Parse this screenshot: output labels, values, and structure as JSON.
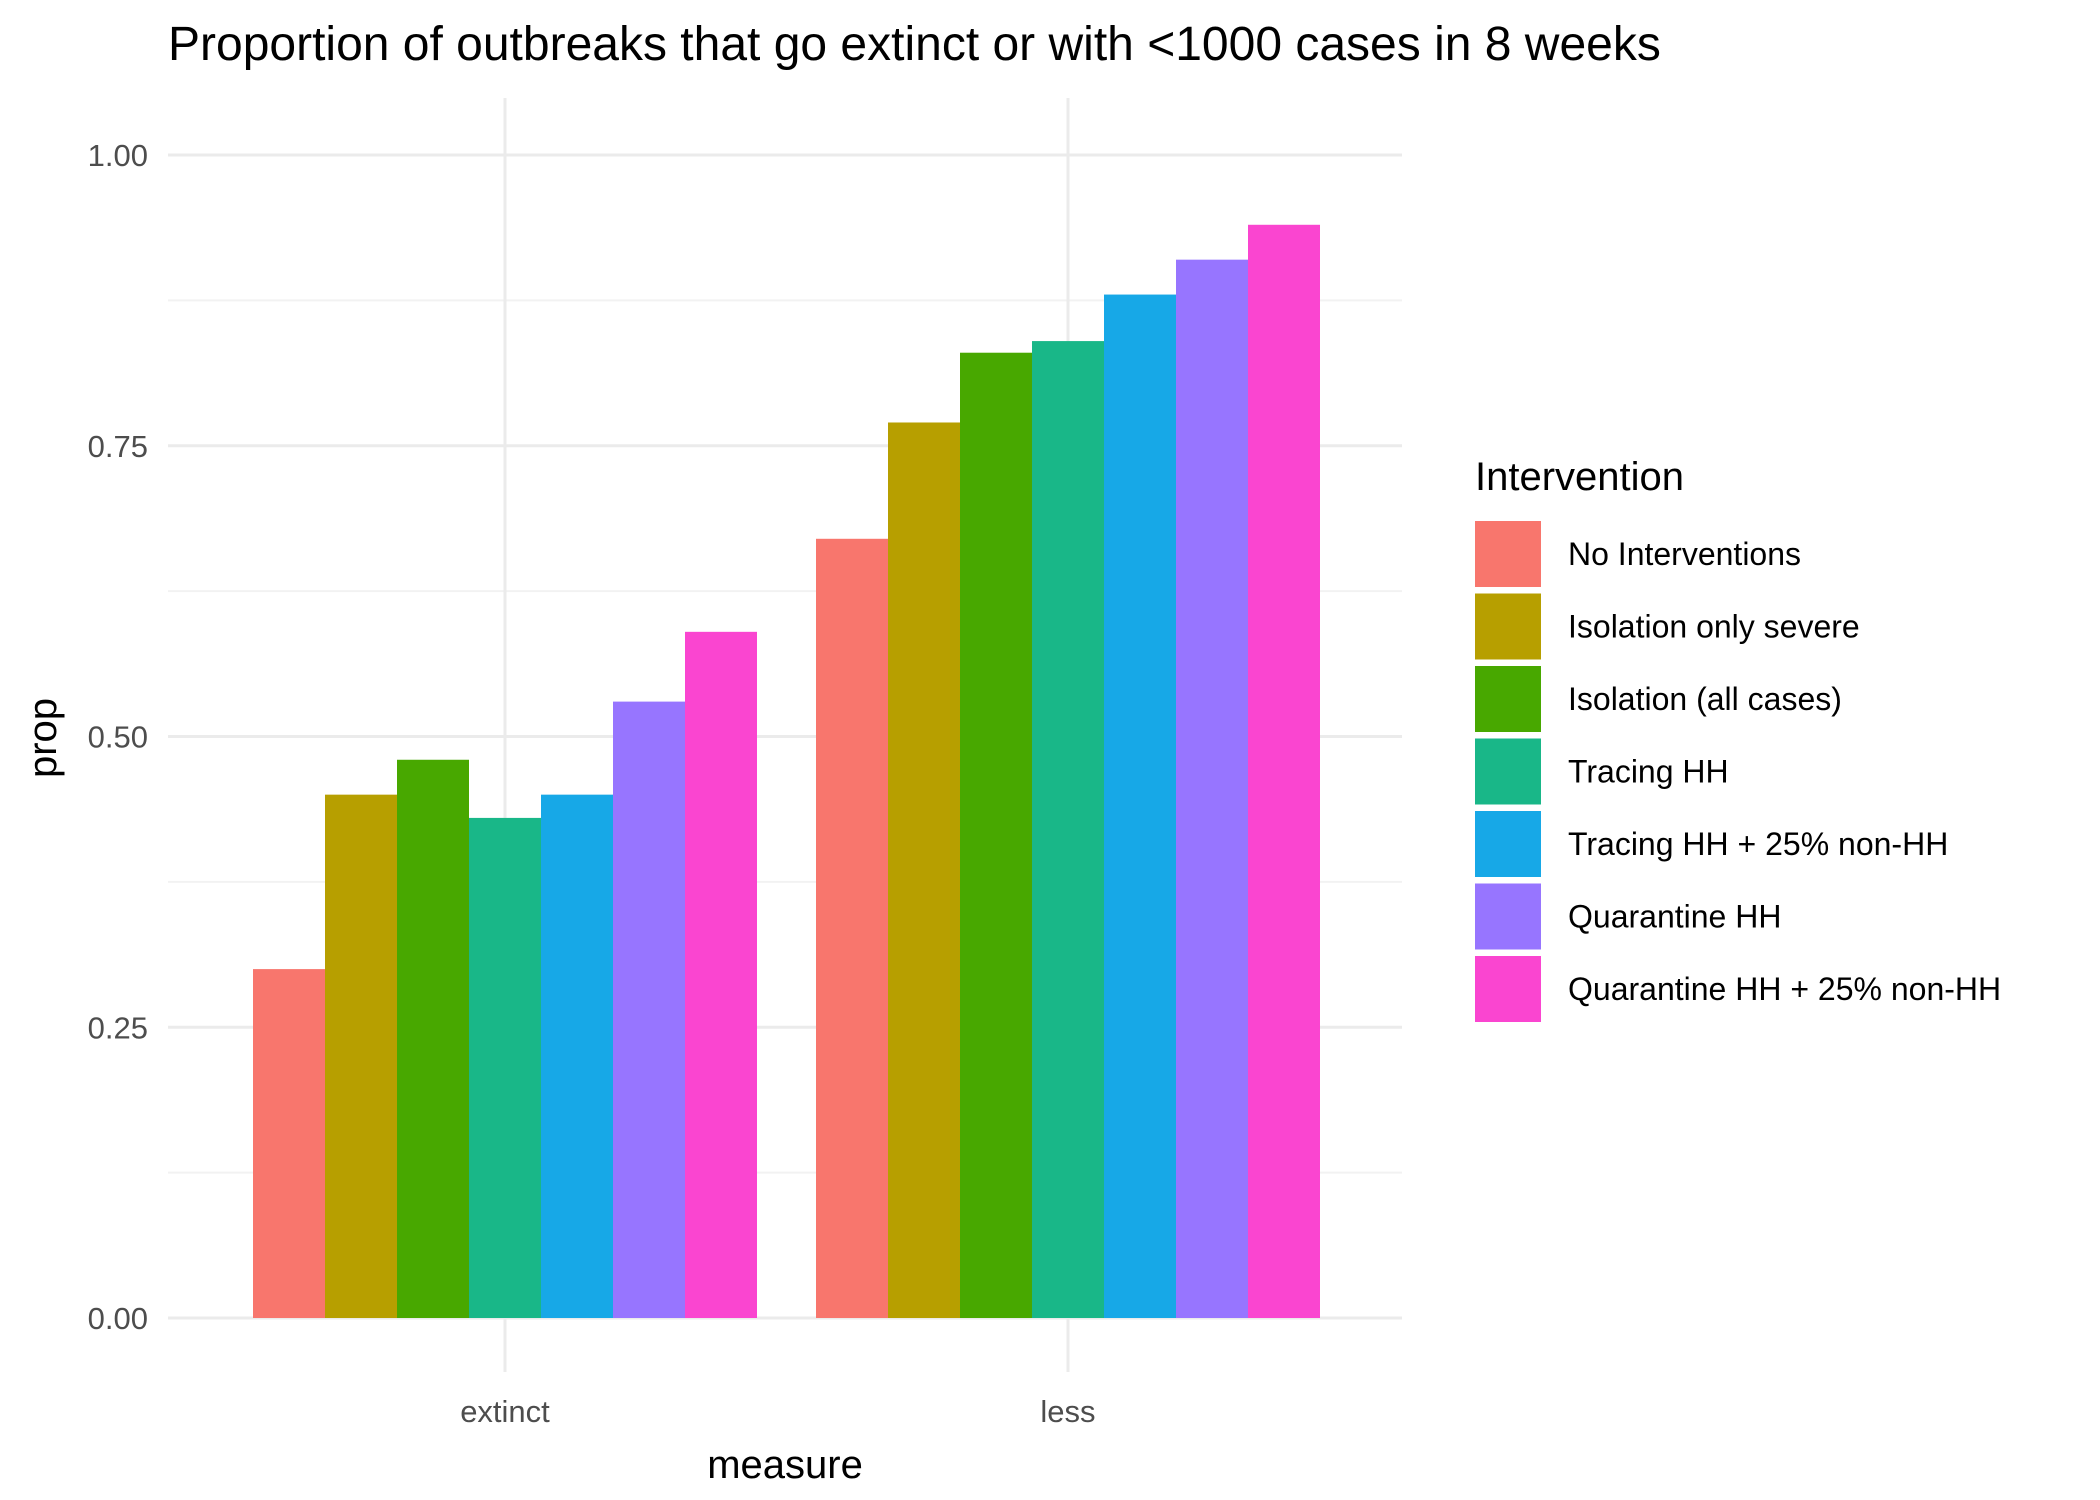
{
  "chart_data": {
    "type": "bar",
    "title": "Proportion of outbreaks that go extinct or with <1000 cases in 8 weeks",
    "xlabel": "measure",
    "ylabel": "prop",
    "categories": [
      "extinct",
      "less"
    ],
    "ylim": [
      0,
      1
    ],
    "yticks": [
      0.0,
      0.25,
      0.5,
      0.75,
      1.0
    ],
    "ytick_labels": [
      "0.00",
      "0.25",
      "0.50",
      "0.75",
      "1.00"
    ],
    "grid": true,
    "legend_title": "Intervention",
    "legend_position": "right",
    "series": [
      {
        "name": "No Interventions",
        "color": "#F8766D",
        "values": [
          0.3,
          0.67
        ]
      },
      {
        "name": "Isolation only severe",
        "color": "#B79F00",
        "values": [
          0.45,
          0.77
        ]
      },
      {
        "name": "Isolation (all cases)",
        "color": "#48A800",
        "values": [
          0.48,
          0.83
        ]
      },
      {
        "name": "Tracing HH",
        "color": "#19B788",
        "values": [
          0.43,
          0.84
        ]
      },
      {
        "name": "Tracing HH + 25% non-HH",
        "color": "#17A8E7",
        "values": [
          0.45,
          0.88
        ]
      },
      {
        "name": "Quarantine HH",
        "color": "#9775FF",
        "values": [
          0.53,
          0.91
        ]
      },
      {
        "name": "Quarantine HH + 25% non-HH",
        "color": "#FA45D0",
        "values": [
          0.59,
          0.94
        ]
      }
    ]
  }
}
